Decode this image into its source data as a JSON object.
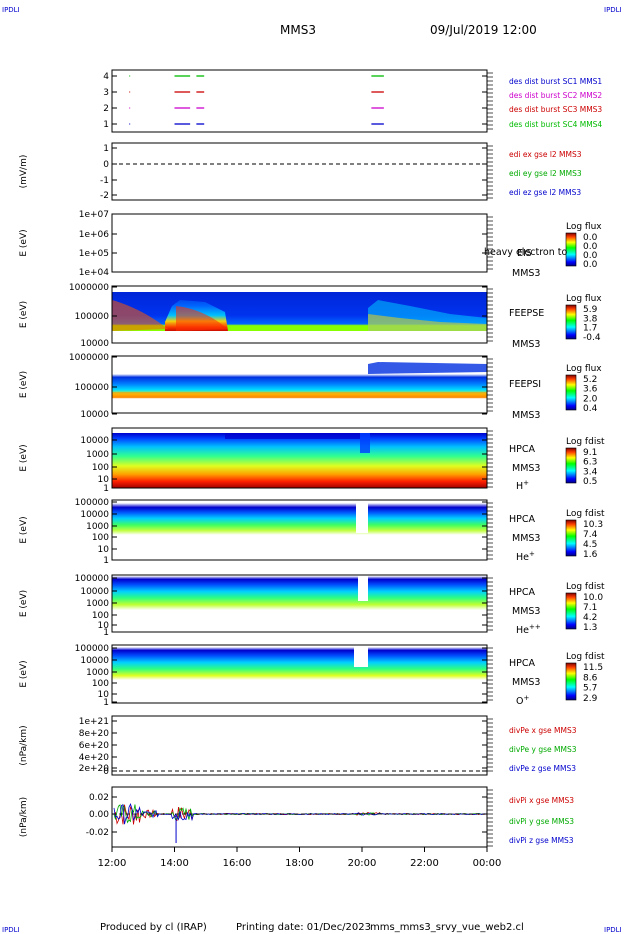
{
  "header": {
    "corner_tl": "IPDLI",
    "corner_tr": "IPDLI",
    "corner_bl": "IPDLI",
    "corner_br": "IPDLI",
    "spacecraft": "MMS3",
    "datetime": "09/Jul/2019 12:00"
  },
  "footer": {
    "produced_by": "Produced by cl (IRAP)",
    "printing_date": "Printing date: 01/Dec/2023",
    "filename": "mms_mms3_srvy_vue_web2.cl"
  },
  "chart_data": {
    "type": "stacked-timeseries",
    "x_start": "12:00",
    "x_end": "00:00",
    "x_ticks": [
      "12:00",
      "14:00",
      "16:00",
      "18:00",
      "20:00",
      "22:00",
      "00:00"
    ],
    "panels": [
      {
        "id": "burst",
        "ylabel": "",
        "ticks": [
          "4",
          "3",
          "2",
          "1"
        ],
        "legend": [
          {
            "text": "des dist burst SC1 MMS1",
            "color": "#0000cc"
          },
          {
            "text": "des dist burst SC2 MMS2",
            "color": "#cc00cc"
          },
          {
            "text": "des dist burst SC3 MMS3",
            "color": "#cc0000"
          },
          {
            "text": "des dist burst SC4 MMS4",
            "color": "#00bb00"
          }
        ],
        "intervals_hours": [
          [
            2.0,
            2.5
          ],
          [
            2.7,
            2.95
          ],
          [
            8.3,
            8.7
          ]
        ]
      },
      {
        "id": "edi",
        "ylabel": "(mV/m)",
        "ticks": [
          "1",
          "0",
          "-1",
          "-2"
        ],
        "legend": [
          {
            "text": "edi ex gse l2 MMS3",
            "color": "#cc0000"
          },
          {
            "text": "edi ey gse l2 MMS3",
            "color": "#00aa00"
          },
          {
            "text": "edi ez gse l2 MMS3",
            "color": "#0000cc"
          }
        ]
      },
      {
        "id": "eis",
        "ylabel": "E (eV)",
        "ticks": [
          "1e+07",
          "1e+06",
          "1e+05",
          "1e+04"
        ],
        "label1": "EIS",
        "label2": "MMS3",
        "overlay_text": "heavy electron to",
        "cbar_title": "Log flux",
        "cbar_ticks": [
          "0.0",
          "0.0",
          "0.0",
          "0.0"
        ]
      },
      {
        "id": "feepse",
        "ylabel": "E (eV)",
        "ticks": [
          "1000000",
          "100000",
          "10000"
        ],
        "label1": "FEEPSE",
        "label2": "MMS3",
        "cbar_title": "Log flux",
        "cbar_ticks": [
          "5.9",
          "3.8",
          "1.7",
          "-0.4"
        ]
      },
      {
        "id": "feepsi",
        "ylabel": "E (eV)",
        "ticks": [
          "1000000",
          "100000",
          "10000"
        ],
        "label1": "FEEPSI",
        "label2": "MMS3",
        "cbar_title": "Log flux",
        "cbar_ticks": [
          "5.2",
          "3.6",
          "2.0",
          "0.4"
        ]
      },
      {
        "id": "hpca-h",
        "ylabel": "E (eV)",
        "ticks": [
          "10000",
          "1000",
          "100",
          "10",
          "1"
        ],
        "label1": "HPCA",
        "label2": "MMS3",
        "species": "H",
        "species_sup": "+",
        "cbar_title": "Log fdist",
        "cbar_ticks": [
          "9.1",
          "6.3",
          "3.4",
          "0.5"
        ]
      },
      {
        "id": "hpca-he",
        "ylabel": "E (eV)",
        "ticks": [
          "100000",
          "10000",
          "1000",
          "100",
          "10",
          "1"
        ],
        "label1": "HPCA",
        "label2": "MMS3",
        "species": "He",
        "species_sup": "+",
        "cbar_title": "Log fdist",
        "cbar_ticks": [
          "10.3",
          "7.4",
          "4.5",
          "1.6"
        ]
      },
      {
        "id": "hpca-he2",
        "ylabel": "E (eV)",
        "ticks": [
          "100000",
          "10000",
          "1000",
          "100",
          "10",
          "1"
        ],
        "label1": "HPCA",
        "label2": "MMS3",
        "species": "He",
        "species_sup": "++",
        "cbar_title": "Log fdist",
        "cbar_ticks": [
          "10.0",
          "7.1",
          "4.2",
          "1.3"
        ]
      },
      {
        "id": "hpca-o",
        "ylabel": "E (eV)",
        "ticks": [
          "100000",
          "10000",
          "1000",
          "100",
          "10",
          "1"
        ],
        "label1": "HPCA",
        "label2": "MMS3",
        "species": "O",
        "species_sup": "+",
        "cbar_title": "Log fdist",
        "cbar_ticks": [
          "11.5",
          "8.6",
          "5.7",
          "2.9"
        ]
      },
      {
        "id": "divpe",
        "ylabel": "(nPa/km)",
        "ticks": [
          "1e+21",
          "8e+20",
          "6e+20",
          "4e+20",
          "2e+20",
          "0"
        ],
        "legend": [
          {
            "text": "divPe x gse MMS3",
            "color": "#cc0000"
          },
          {
            "text": "divPe y gse MMS3",
            "color": "#00aa00"
          },
          {
            "text": "divPe z gse MMS3",
            "color": "#0000cc"
          }
        ]
      },
      {
        "id": "divpi",
        "ylabel": "(nPa/km)",
        "ticks": [
          "0.02",
          "0.00",
          "-0.02"
        ],
        "legend": [
          {
            "text": "divPi x gse MMS3",
            "color": "#cc0000"
          },
          {
            "text": "divPi y gse MMS3",
            "color": "#00aa00"
          },
          {
            "text": "divPi z gse MMS3",
            "color": "#0000cc"
          }
        ]
      }
    ]
  }
}
